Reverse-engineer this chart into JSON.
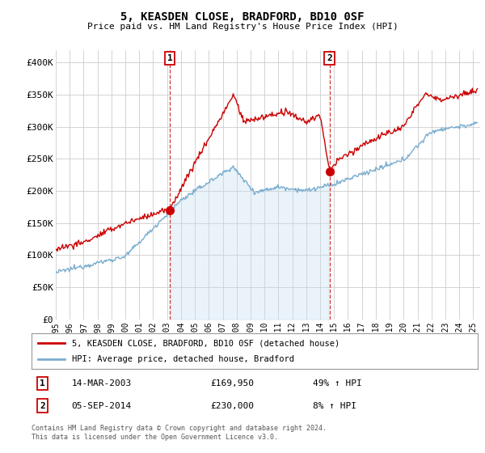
{
  "title": "5, KEASDEN CLOSE, BRADFORD, BD10 0SF",
  "subtitle": "Price paid vs. HM Land Registry's House Price Index (HPI)",
  "xlim_start": 1995.0,
  "xlim_end": 2025.5,
  "ylim": [
    0,
    420000
  ],
  "yticks": [
    0,
    50000,
    100000,
    150000,
    200000,
    250000,
    300000,
    350000,
    400000
  ],
  "ytick_labels": [
    "£0",
    "£50K",
    "£100K",
    "£150K",
    "£200K",
    "£250K",
    "£300K",
    "£350K",
    "£400K"
  ],
  "sale1_x": 2003.2,
  "sale1_y": 169950,
  "sale2_x": 2014.67,
  "sale2_y": 230000,
  "sale1_label": "14-MAR-2003",
  "sale1_price": "£169,950",
  "sale1_hpi": "49% ↑ HPI",
  "sale2_label": "05-SEP-2014",
  "sale2_price": "£230,000",
  "sale2_hpi": "8% ↑ HPI",
  "legend_line1": "5, KEASDEN CLOSE, BRADFORD, BD10 0SF (detached house)",
  "legend_line2": "HPI: Average price, detached house, Bradford",
  "footer": "Contains HM Land Registry data © Crown copyright and database right 2024.\nThis data is licensed under the Open Government Licence v3.0.",
  "red_color": "#cc0000",
  "blue_color": "#7aadcf",
  "blue_fill_color": "#c5dff0",
  "background_color": "#ffffff",
  "grid_color": "#cccccc"
}
